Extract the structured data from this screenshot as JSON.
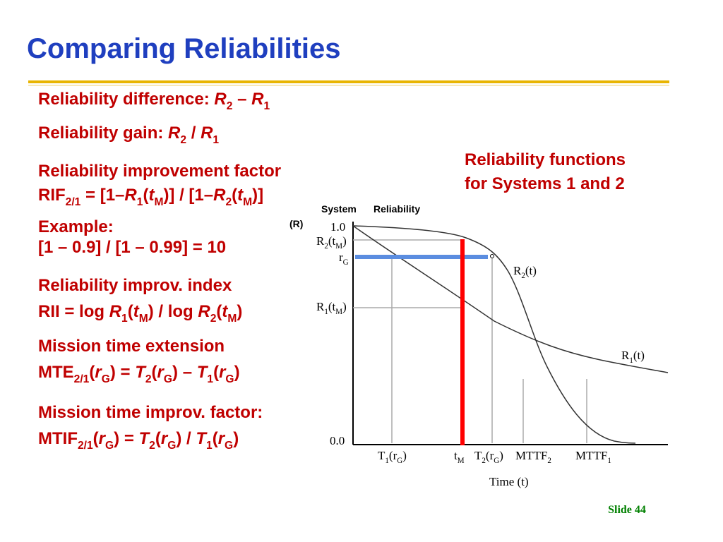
{
  "title": "Comparing Reliabilities",
  "lines": [
    [
      "Reliability difference: ",
      "R",
      "2",
      " – ",
      "R",
      "1"
    ],
    [
      "Reliability gain: ",
      "R",
      "2",
      " / ",
      "R",
      "1"
    ],
    [
      "Reliability improvement factor"
    ],
    [
      "RIF",
      "2/1",
      " = [1–",
      "R",
      "1",
      "(",
      "t",
      "M",
      ")] / [1–",
      "R",
      "2",
      "(",
      "t",
      "M",
      ")]"
    ],
    [
      "Example:"
    ],
    [
      "[1 – 0.9] / [1 – 0.99] = 10"
    ],
    [
      "Reliability improv. index"
    ],
    [
      "RII = log ",
      "R",
      "1",
      "(",
      "t",
      "M",
      ") / log ",
      "R",
      "2",
      "(",
      "t",
      "M",
      ")"
    ],
    [
      "Mission time extension"
    ],
    [
      "MTE",
      "2/1",
      "(",
      "r",
      "G",
      ") = ",
      "T",
      "2",
      "(",
      "r",
      "G",
      ") – ",
      "T",
      "1",
      "(",
      "r",
      "G",
      ")"
    ],
    [
      "Mission time improv. factor:"
    ],
    [
      "MTIF",
      "2/1",
      "(",
      "r",
      "G",
      ") = ",
      "T",
      "2",
      "(",
      "r",
      "G",
      ") / ",
      "T",
      "1",
      "(",
      "r",
      "G",
      ")"
    ]
  ],
  "caption": [
    "Reliability functions",
    "for Systems 1 and 2"
  ],
  "figure": {
    "y_axis_label": [
      "System",
      "Reliability",
      "(R)"
    ],
    "y_top": "1.0",
    "y_bottom": "0.0",
    "r2_tm": [
      "R",
      "2",
      "(t",
      "M",
      ")"
    ],
    "r_g": [
      "r",
      "G"
    ],
    "r1_tm": [
      "R",
      "1",
      "(t",
      "M",
      ")"
    ],
    "r2_curve": [
      "R",
      "2",
      "(t)"
    ],
    "r1_curve": [
      "R",
      "1",
      "(t)"
    ],
    "t1_rg": [
      "T",
      "1",
      "(r",
      "G",
      ")"
    ],
    "t_m": [
      "t",
      "M"
    ],
    "t2_rg": [
      "T",
      "2",
      "(r",
      "G",
      ")"
    ],
    "mttf2": [
      "MTTF",
      "2"
    ],
    "mttf1": [
      "MTTF",
      "1"
    ],
    "x_axis_label": "Time (t)"
  },
  "slide_number": "Slide 44"
}
